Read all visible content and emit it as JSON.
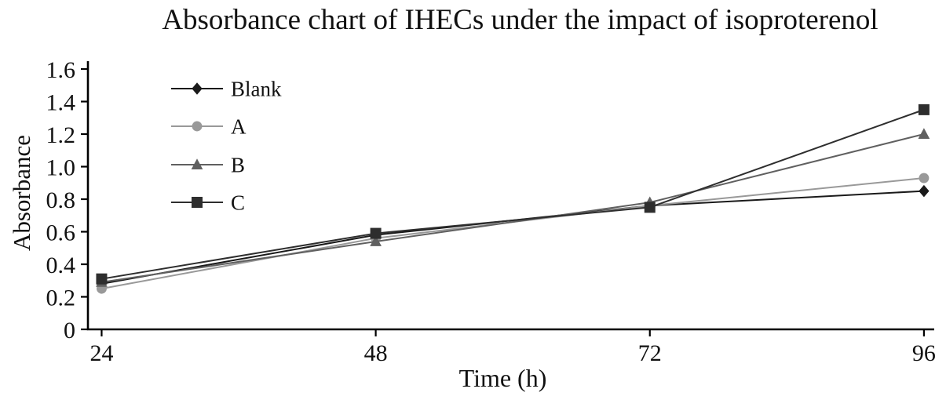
{
  "chart_data": {
    "type": "line",
    "title": "Absorbance chart of IHECs under the impact of isoproterenol",
    "xlabel": "Time (h)",
    "ylabel": "Absorbance",
    "x": [
      24,
      48,
      72,
      96
    ],
    "x_ticks": [
      24,
      48,
      72,
      96
    ],
    "x_tick_labels": [
      "24",
      "48",
      "72",
      "96"
    ],
    "y_ticks": [
      0,
      0.2,
      0.4,
      0.6,
      0.8,
      1.0,
      1.2,
      1.4,
      1.6
    ],
    "y_tick_labels": [
      "0",
      "0.2",
      "0.4",
      "0.6",
      "0.8",
      "1.0",
      "1.2",
      "1.4",
      "1.6"
    ],
    "xlim": [
      22.8,
      96.9
    ],
    "ylim": [
      0,
      1.6
    ],
    "grid": false,
    "legend_position": "top-left-inside",
    "axis_color": "#000000",
    "series": [
      {
        "name": "Blank",
        "marker": "diamond",
        "color": "#1a1a1a",
        "values": [
          0.28,
          0.58,
          0.76,
          0.85
        ]
      },
      {
        "name": "A",
        "marker": "circle",
        "color": "#999999",
        "values": [
          0.25,
          0.56,
          0.76,
          0.93
        ]
      },
      {
        "name": "B",
        "marker": "triangle",
        "color": "#606060",
        "values": [
          0.29,
          0.54,
          0.78,
          1.2
        ]
      },
      {
        "name": "C",
        "marker": "square",
        "color": "#2e2e2e",
        "values": [
          0.31,
          0.59,
          0.75,
          1.35
        ]
      }
    ]
  }
}
